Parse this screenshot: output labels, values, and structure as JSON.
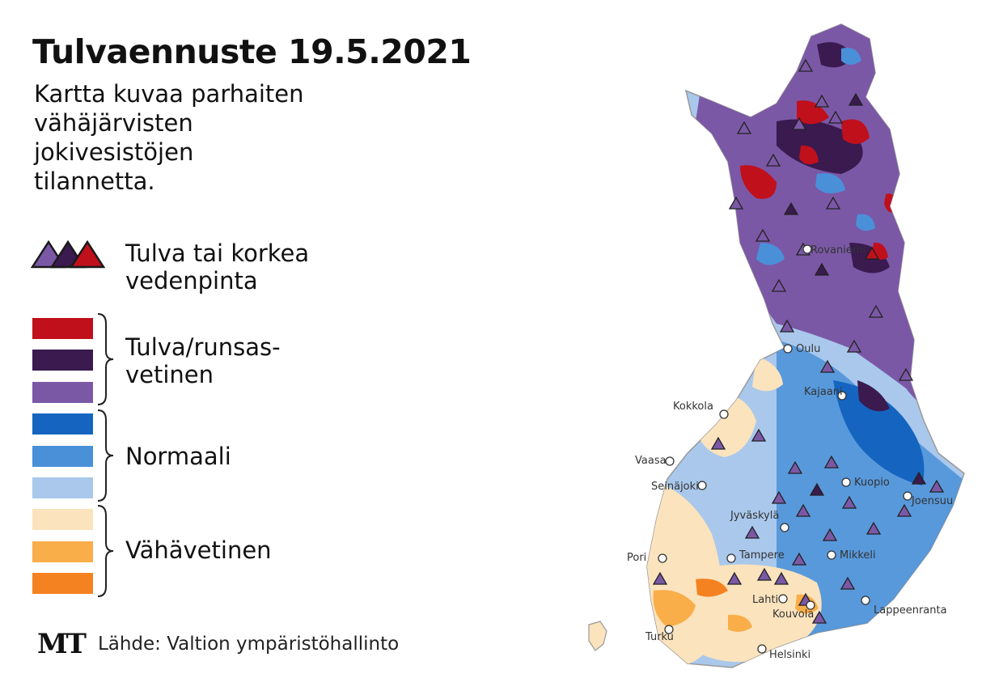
{
  "title": "Tulvaennuste 19.5.2021",
  "subtitle_lines": [
    "Kartta kuvaa parhaiten",
    "vähäjärvisten",
    "jokivesistöjen",
    "tilannetta."
  ],
  "triangle_legend": {
    "label_lines": [
      "Tulva tai korkea",
      "vedenpinta"
    ],
    "colors": [
      "#7b58a6",
      "#3a1a4f",
      "#c0101c"
    ]
  },
  "color_scale": [
    {
      "color": "#c0101c"
    },
    {
      "color": "#3a1a4f"
    },
    {
      "color": "#7b58a6"
    },
    {
      "color": "#1565c0"
    },
    {
      "color": "#4a90d9"
    },
    {
      "color": "#a9c8ec"
    },
    {
      "color": "#fbe3bd"
    },
    {
      "color": "#f9ae4a"
    },
    {
      "color": "#f58220"
    }
  ],
  "groups": [
    {
      "label_lines": [
        "Tulva/runsas-",
        "vetinen"
      ]
    },
    {
      "label_lines": [
        "Normaali"
      ]
    },
    {
      "label_lines": [
        "Vähävetinen"
      ]
    }
  ],
  "footer": {
    "logo": "MT",
    "source": "Lähde: Valtion ympäristöhallinto"
  },
  "map": {
    "cities": [
      {
        "name": "Rovaniemi"
      },
      {
        "name": "Oulu"
      },
      {
        "name": "Kajaani"
      },
      {
        "name": "Kokkola"
      },
      {
        "name": "Vaasa"
      },
      {
        "name": "Seinäjoki"
      },
      {
        "name": "Kuopio"
      },
      {
        "name": "Joensuu"
      },
      {
        "name": "Jyväskylä"
      },
      {
        "name": "Pori"
      },
      {
        "name": "Tampere"
      },
      {
        "name": "Mikkeli"
      },
      {
        "name": "Lahti"
      },
      {
        "name": "Kouvola"
      },
      {
        "name": "Lappeenranta"
      },
      {
        "name": "Turku"
      },
      {
        "name": "Helsinki"
      }
    ]
  }
}
